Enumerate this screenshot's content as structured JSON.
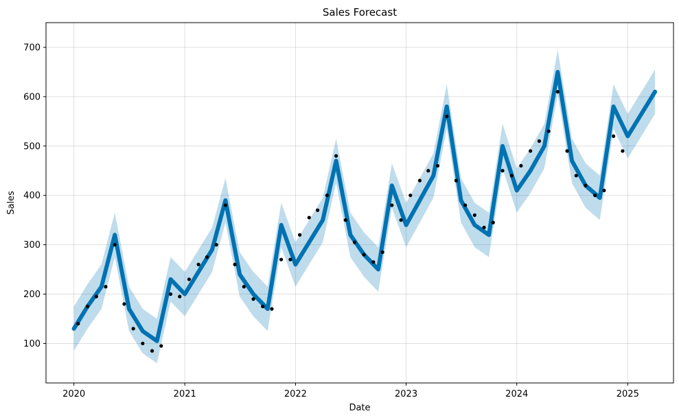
{
  "chart_data": {
    "type": "scatter",
    "title": "Sales Forecast",
    "xlabel": "Date",
    "ylabel": "Sales",
    "xlim": [
      "2019-10-01",
      "2025-06-01"
    ],
    "ylim": [
      20,
      750
    ],
    "grid": true,
    "x_ticks": [
      "2020",
      "2021",
      "2022",
      "2023",
      "2024",
      "2025"
    ],
    "y_ticks": [
      100,
      200,
      300,
      400,
      500,
      600,
      700
    ],
    "colors": {
      "observed": "#000000",
      "forecast": "#0072B2",
      "interval": "#0072B2",
      "grid": "#b0b0b0"
    },
    "series": [
      {
        "kind": "observed",
        "x": [
          "2020-01-15",
          "2020-02-15",
          "2020-03-15",
          "2020-04-15",
          "2020-05-15",
          "2020-06-15",
          "2020-07-15",
          "2020-08-15",
          "2020-09-15",
          "2020-10-15",
          "2020-11-15",
          "2020-12-15",
          "2021-01-15",
          "2021-02-15",
          "2021-03-15",
          "2021-04-15",
          "2021-05-15",
          "2021-06-15",
          "2021-07-15",
          "2021-08-15",
          "2021-09-15",
          "2021-10-15",
          "2021-11-15",
          "2021-12-15",
          "2022-01-15",
          "2022-02-15",
          "2022-03-15",
          "2022-04-15",
          "2022-05-15",
          "2022-06-15",
          "2022-07-15",
          "2022-08-15",
          "2022-09-15",
          "2022-10-15",
          "2022-11-15",
          "2022-12-15",
          "2023-01-15",
          "2023-02-15",
          "2023-03-15",
          "2023-04-15",
          "2023-05-15",
          "2023-06-15",
          "2023-07-15",
          "2023-08-15",
          "2023-09-15",
          "2023-10-15",
          "2023-11-15",
          "2023-12-15",
          "2024-01-15",
          "2024-02-15",
          "2024-03-15",
          "2024-04-15",
          "2024-05-15",
          "2024-06-15",
          "2024-07-15",
          "2024-08-15",
          "2024-09-15",
          "2024-10-15",
          "2024-11-15",
          "2024-12-15"
        ],
        "y": [
          140,
          175,
          195,
          215,
          300,
          180,
          130,
          100,
          85,
          95,
          200,
          195,
          230,
          260,
          275,
          300,
          380,
          260,
          215,
          190,
          175,
          170,
          270,
          270,
          320,
          355,
          370,
          400,
          480,
          350,
          305,
          280,
          265,
          285,
          380,
          350,
          400,
          430,
          450,
          460,
          560,
          430,
          380,
          360,
          335,
          345,
          450,
          440,
          460,
          490,
          510,
          530,
          610,
          490,
          440,
          420,
          400,
          410,
          520,
          490
        ]
      },
      {
        "kind": "forecast",
        "x": [
          "2020-01-01",
          "2020-02-15",
          "2020-04-01",
          "2020-05-15",
          "2020-07-01",
          "2020-08-15",
          "2020-10-01",
          "2020-11-15",
          "2021-01-01",
          "2021-02-15",
          "2021-04-01",
          "2021-05-15",
          "2021-07-01",
          "2021-08-15",
          "2021-10-01",
          "2021-11-15",
          "2022-01-01",
          "2022-02-15",
          "2022-04-01",
          "2022-05-15",
          "2022-07-01",
          "2022-08-15",
          "2022-10-01",
          "2022-11-15",
          "2023-01-01",
          "2023-02-15",
          "2023-04-01",
          "2023-05-15",
          "2023-07-01",
          "2023-08-15",
          "2023-10-01",
          "2023-11-15",
          "2024-01-01",
          "2024-02-15",
          "2024-04-01",
          "2024-05-15",
          "2024-07-01",
          "2024-08-15",
          "2024-10-01",
          "2024-11-15",
          "2025-01-01",
          "2025-02-15",
          "2025-04-01"
        ],
        "y": [
          130,
          175,
          215,
          320,
          170,
          125,
          105,
          230,
          200,
          245,
          290,
          390,
          240,
          200,
          170,
          340,
          260,
          305,
          350,
          470,
          320,
          280,
          250,
          420,
          340,
          390,
          440,
          580,
          390,
          340,
          320,
          500,
          410,
          450,
          500,
          650,
          470,
          420,
          395,
          580,
          520,
          565,
          610
        ]
      }
    ]
  }
}
